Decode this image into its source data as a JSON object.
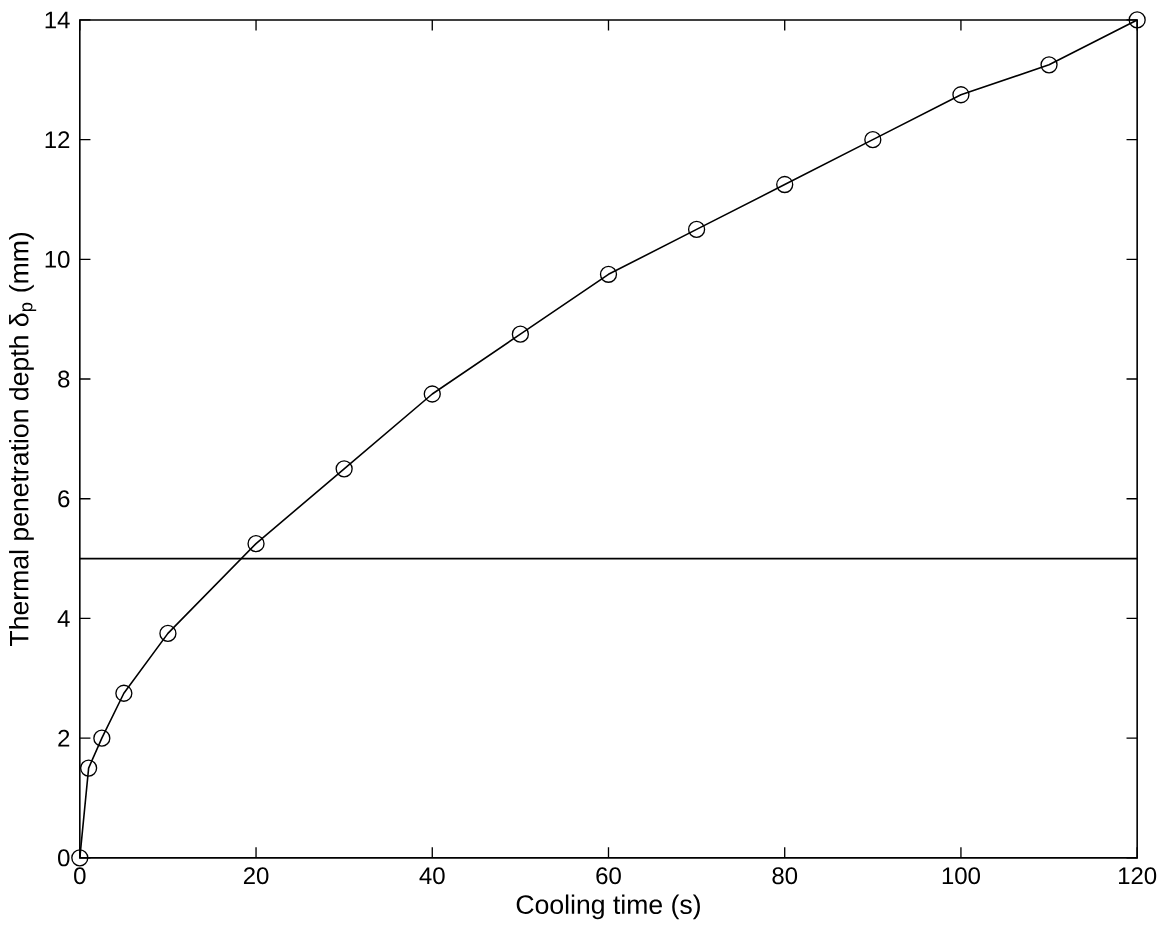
{
  "chart_data": {
    "type": "line",
    "xlabel": "Cooling time (s)",
    "ylabel": "Thermal penetration depth δ$_{p}$ (mm)",
    "x": [
      0,
      1,
      2.5,
      5,
      10,
      20,
      30,
      40,
      50,
      60,
      70,
      80,
      90,
      100,
      110,
      120
    ],
    "series": [
      {
        "color": "#000000",
        "values": [
          0,
          1.5,
          2.0,
          2.75,
          3.75,
          5.25,
          6.5,
          7.75,
          8.75,
          9.75,
          10.5,
          11.25,
          12.0,
          12.75,
          13.25,
          14.0
        ]
      }
    ],
    "xlim": [
      0,
      120
    ],
    "ylim": [
      0,
      14
    ],
    "xticks": [
      0,
      20,
      40,
      60,
      80,
      100,
      120
    ],
    "yticks": [
      0,
      2,
      4,
      6,
      8,
      10,
      12,
      14
    ],
    "ref_lines": [
      {
        "axis": "y",
        "value": 5,
        "color": "#000000"
      }
    ],
    "marker": "circle",
    "line_style": "solid"
  }
}
